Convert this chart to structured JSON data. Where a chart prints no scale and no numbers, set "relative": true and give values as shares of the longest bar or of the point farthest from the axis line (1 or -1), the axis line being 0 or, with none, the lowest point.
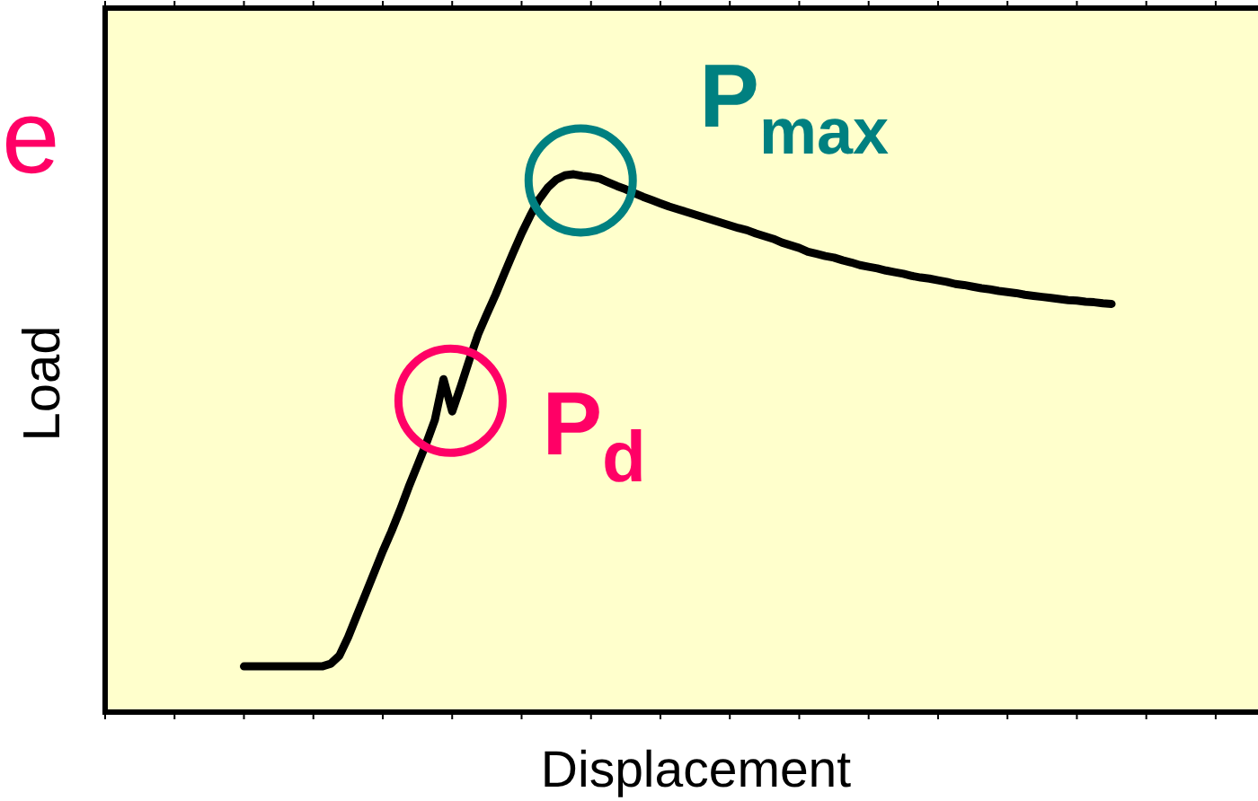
{
  "chart_data": {
    "type": "line",
    "relative": true,
    "xlabel": "Displacement",
    "ylabel": "Load",
    "color": "#000000",
    "categories": [
      null,
      null,
      null,
      null,
      null,
      null,
      null,
      null,
      null,
      null,
      null,
      null,
      null,
      null,
      null,
      null,
      null,
      null,
      null,
      null,
      null,
      null,
      null,
      null,
      null,
      null,
      null,
      null,
      null,
      null,
      null,
      null,
      null,
      null,
      null,
      null,
      null,
      null,
      null,
      null,
      null,
      null,
      null,
      null,
      null,
      null,
      null,
      null,
      null,
      null,
      null,
      null,
      null,
      null,
      null,
      null,
      null,
      null,
      null,
      null,
      null,
      null,
      null,
      null,
      null,
      null,
      null,
      null,
      null,
      null,
      null,
      null,
      null,
      null,
      null,
      null,
      null,
      null,
      null,
      null,
      null,
      null,
      null,
      null,
      null,
      null,
      null,
      null,
      null,
      null,
      null,
      null,
      null,
      null,
      null,
      null,
      null,
      null,
      null,
      null,
      null,
      null,
      null,
      null,
      null,
      null,
      null,
      null,
      null,
      null,
      null,
      null,
      null,
      null,
      null,
      null,
      null,
      null,
      null,
      null,
      null,
      null,
      null,
      null,
      null,
      null,
      null,
      null,
      null,
      null,
      null,
      null,
      null,
      null
    ],
    "values": [
      null,
      null,
      null,
      null,
      null,
      null,
      null,
      null,
      null,
      null,
      null,
      null,
      null,
      null,
      null,
      null,
      0.085,
      0.085,
      0.085,
      0.085,
      0.085,
      0.085,
      0.085,
      0.085,
      0.085,
      0.085,
      0.09,
      0.105,
      0.139,
      0.179,
      0.219,
      0.259,
      0.299,
      0.336,
      0.376,
      0.419,
      0.459,
      0.499,
      0.543,
      0.619,
      0.559,
      0.606,
      0.656,
      0.703,
      0.74,
      0.776,
      0.815,
      0.853,
      0.89,
      0.923,
      0.953,
      0.975,
      0.99,
      0.998,
      1,
      0.997,
      0.995,
      0.992,
      0.985,
      0.978,
      0.972,
      0.965,
      0.958,
      0.952,
      0.946,
      0.94,
      0.935,
      0.93,
      0.925,
      0.92,
      0.915,
      0.91,
      0.905,
      0.9,
      0.896,
      0.89,
      0.885,
      0.88,
      0.873,
      0.868,
      0.863,
      0.856,
      0.852,
      0.848,
      0.845,
      0.84,
      0.836,
      0.831,
      0.828,
      0.825,
      0.821,
      0.818,
      0.815,
      0.811,
      0.808,
      0.806,
      0.803,
      0.8,
      0.796,
      0.794,
      0.791,
      0.788,
      0.786,
      0.783,
      0.781,
      0.779,
      0.776,
      0.774,
      0.772,
      0.77,
      0.768,
      0.766,
      0.765,
      0.763,
      0.762,
      0.76,
      0.759,
      null,
      null,
      null,
      null,
      null,
      null,
      null,
      null,
      null,
      null,
      null,
      null,
      null,
      null,
      null,
      null,
      null
    ],
    "annotations": [
      "P$_{max}$",
      "P$_{d}$",
      "e"
    ]
  }
}
